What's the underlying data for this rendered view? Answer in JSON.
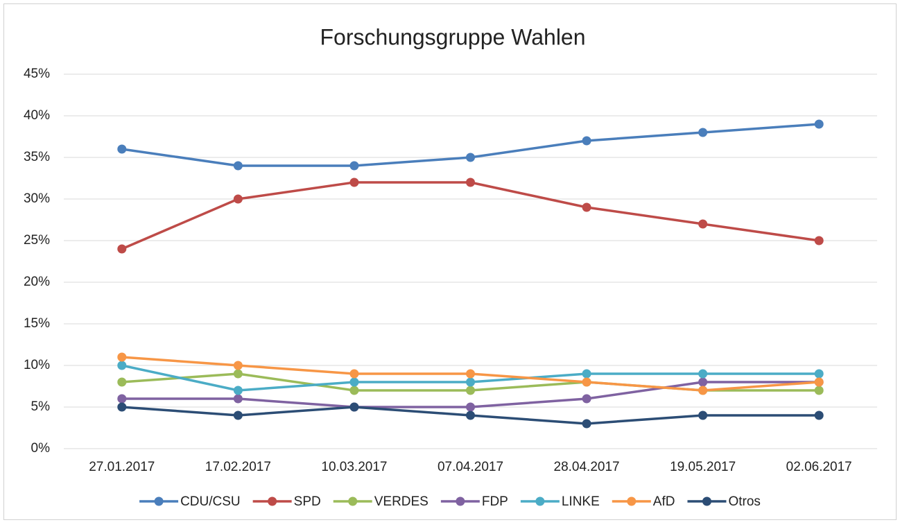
{
  "chart_data": {
    "type": "line",
    "title": "Forschungsgruppe Wahlen",
    "categories": [
      "27.01.2017",
      "17.02.2017",
      "10.03.2017",
      "07.04.2017",
      "28.04.2017",
      "19.05.2017",
      "02.06.2017"
    ],
    "series": [
      {
        "name": "CDU/CSU",
        "color": "#4a7ebb",
        "values": [
          36,
          34,
          34,
          35,
          37,
          38,
          39
        ]
      },
      {
        "name": "SPD",
        "color": "#be4b48",
        "values": [
          24,
          30,
          32,
          32,
          29,
          27,
          25
        ]
      },
      {
        "name": "VERDES",
        "color": "#9bbb59",
        "values": [
          8,
          9,
          7,
          7,
          8,
          7,
          7
        ]
      },
      {
        "name": "FDP",
        "color": "#7f62a1",
        "values": [
          6,
          6,
          5,
          5,
          6,
          8,
          8
        ]
      },
      {
        "name": "LINKE",
        "color": "#4bacc6",
        "values": [
          10,
          7,
          8,
          8,
          9,
          9,
          9
        ]
      },
      {
        "name": "AfD",
        "color": "#f79646",
        "values": [
          11,
          10,
          9,
          9,
          8,
          7,
          8
        ]
      },
      {
        "name": "Otros",
        "color": "#2c4d75",
        "values": [
          5,
          4,
          5,
          4,
          3,
          4,
          4
        ]
      }
    ],
    "ylim": [
      0,
      45
    ],
    "yticks": [
      {
        "value": 0,
        "label": "0%"
      },
      {
        "value": 5,
        "label": "5%"
      },
      {
        "value": 10,
        "label": "10%"
      },
      {
        "value": 15,
        "label": "15%"
      },
      {
        "value": 20,
        "label": "20%"
      },
      {
        "value": 25,
        "label": "25%"
      },
      {
        "value": 30,
        "label": "30%"
      },
      {
        "value": 35,
        "label": "35%"
      },
      {
        "value": 40,
        "label": "40%"
      },
      {
        "value": 45,
        "label": "45%"
      }
    ],
    "grid": true,
    "legend": "bottom"
  }
}
